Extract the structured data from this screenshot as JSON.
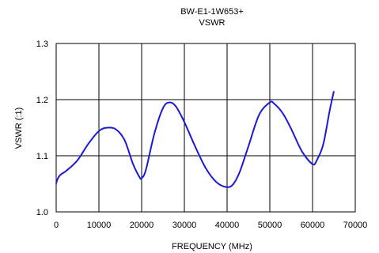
{
  "chart_data": {
    "type": "line",
    "title": "BW-E1-1W653+",
    "subtitle": "VSWR",
    "xlabel": "FREQUENCY (MHz)",
    "ylabel": "VSWR (:1)",
    "xlim": [
      0,
      70000
    ],
    "ylim": [
      1.0,
      1.3
    ],
    "x_ticks": [
      0,
      10000,
      20000,
      30000,
      40000,
      50000,
      60000,
      70000
    ],
    "y_ticks": [
      1.0,
      1.1,
      1.2,
      1.3
    ],
    "x_tick_labels": [
      "0",
      "10000",
      "20000",
      "30000",
      "40000",
      "50000",
      "60000",
      "70000"
    ],
    "y_tick_labels": [
      "1.0",
      "1.1",
      "1.2",
      "1.3"
    ],
    "grid": true,
    "series": [
      {
        "color": "#1a1ad6",
        "x": [
          0,
          300,
          1000,
          2500,
          5000,
          7500,
          10000,
          12000,
          14000,
          16000,
          18000,
          19500,
          20000,
          21000,
          23000,
          25000,
          26500,
          28000,
          30000,
          32500,
          35000,
          37500,
          40000,
          41500,
          43000,
          45000,
          47500,
          50000,
          51000,
          53000,
          55000,
          57500,
          60000,
          61000,
          62500,
          64000,
          65000
        ],
        "y": [
          1.05,
          1.058,
          1.066,
          1.074,
          1.092,
          1.121,
          1.144,
          1.15,
          1.147,
          1.128,
          1.085,
          1.062,
          1.06,
          1.075,
          1.14,
          1.185,
          1.195,
          1.188,
          1.16,
          1.117,
          1.078,
          1.053,
          1.044,
          1.05,
          1.072,
          1.117,
          1.173,
          1.195,
          1.193,
          1.176,
          1.148,
          1.108,
          1.085,
          1.092,
          1.12,
          1.18,
          1.215
        ]
      }
    ]
  }
}
